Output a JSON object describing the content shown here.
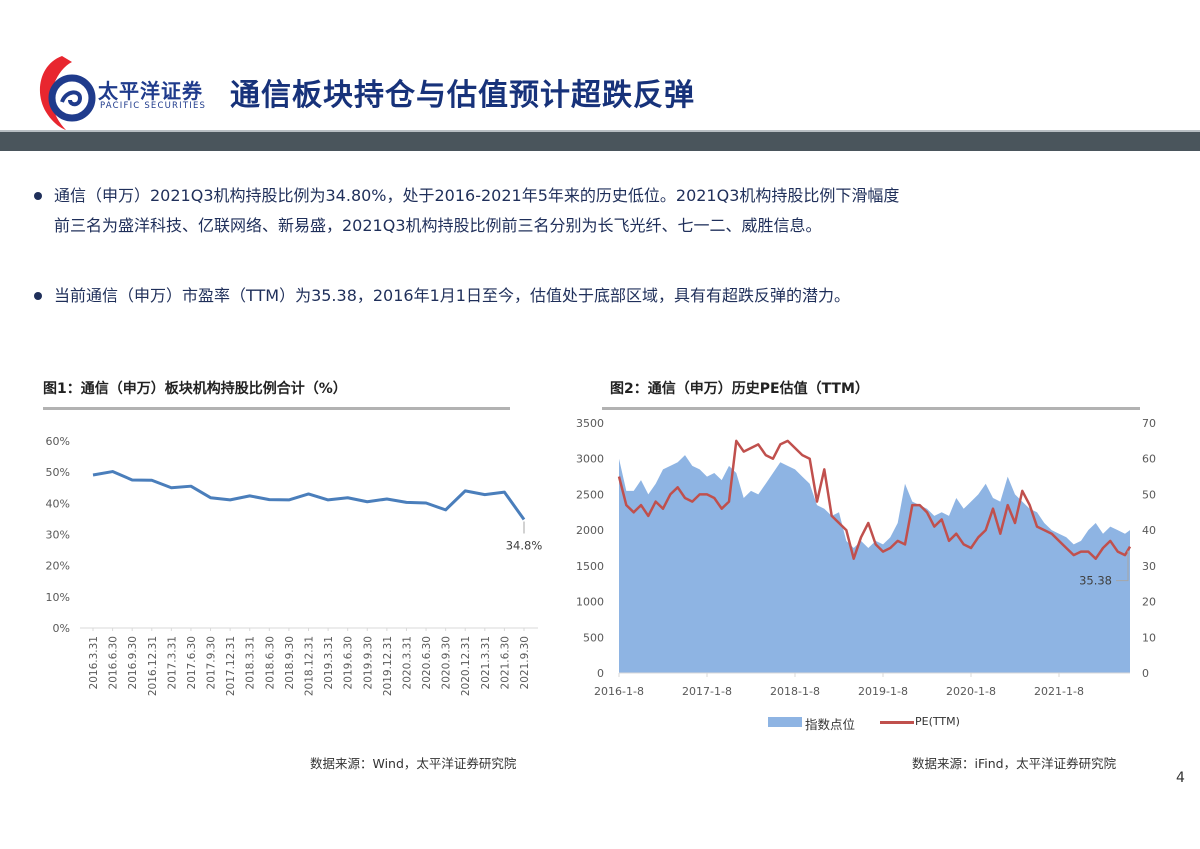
{
  "header": {
    "logo_cn": "太平洋证券",
    "logo_en": "PACIFIC SECURITIES",
    "title": "通信板块持仓与估值预计超跌反弹",
    "bar_color": "#4a555c",
    "logo_colors": {
      "red": "#e8262f",
      "blue": "#1f3b8c"
    }
  },
  "bullets": [
    {
      "lines": [
        "通信（申万）2021Q3机构持股比例为34.80%，处于2016-2021年5年来的历史低位。2021Q3机构持股比例下滑幅度",
        "前三名为盛洋科技、亿联网络、新易盛，2021Q3机构持股比例前三名分别为长飞光纤、七一二、威胜信息。"
      ]
    },
    {
      "lines": [
        "当前通信（申万）市盈率（TTM）为35.38，2016年1月1日至今，估值处于底部区域，具有有超跌反弹的潜力。"
      ]
    }
  ],
  "figure1": {
    "title": "图1：通信（申万）板块机构持股比例合计（%）",
    "source": "数据来源：Wind，太平洋证券研究院"
  },
  "figure2": {
    "title": "图2：通信（申万）历史PE估值（TTM）",
    "source": "数据来源：iFind，太平洋证券研究院",
    "legend": {
      "index": "指数点位",
      "pe": "PE(TTM)"
    }
  },
  "page_number": "4",
  "chart_data": [
    {
      "type": "line",
      "title": "图1：通信（申万）板块机构持股比例合计（%）",
      "xlabel": "",
      "ylabel": "",
      "ylim": [
        0,
        60
      ],
      "yticks": [
        "0%",
        "10%",
        "20%",
        "30%",
        "40%",
        "50%",
        "60%"
      ],
      "grid": false,
      "color": "#4a7ebb",
      "categories": [
        "2016.3.31",
        "2016.6.30",
        "2016.9.30",
        "2016.12.31",
        "2017.3.31",
        "2017.6.30",
        "2017.9.30",
        "2017.12.31",
        "2018.3.31",
        "2018.6.30",
        "2018.9.30",
        "2018.12.31",
        "2019.3.31",
        "2019.6.30",
        "2019.9.30",
        "2019.12.31",
        "2020.3.31",
        "2020.6.30",
        "2020.9.30",
        "2020.12.31",
        "2021.3.31",
        "2021.6.30",
        "2021.9.30"
      ],
      "values": [
        49.1,
        50.2,
        47.5,
        47.4,
        45.0,
        45.5,
        41.8,
        41.1,
        42.4,
        41.2,
        41.1,
        43.0,
        41.1,
        41.8,
        40.5,
        41.4,
        40.3,
        40.1,
        37.9,
        44.0,
        42.8,
        43.6,
        34.8
      ],
      "annotations": [
        {
          "category": "2021.9.30",
          "text": "34.8%"
        }
      ]
    },
    {
      "type": "area+line",
      "title": "图2：通信（申万）历史PE估值（TTM）",
      "x_ticks": [
        "2016-1-8",
        "2017-1-8",
        "2018-1-8",
        "2019-1-8",
        "2020-1-8",
        "2021-1-8"
      ],
      "y_left": {
        "range": [
          0,
          3500
        ],
        "ticks": [
          0,
          500,
          1000,
          1500,
          2000,
          2500,
          3000,
          3500
        ]
      },
      "y_right": {
        "range": [
          0,
          70
        ],
        "ticks": [
          0,
          10,
          20,
          30,
          40,
          50,
          60,
          70
        ]
      },
      "legend_position": "bottom",
      "grid": false,
      "x_monthly_start": "2016-01",
      "series": [
        {
          "name": "指数点位",
          "type": "area",
          "axis": "left",
          "color": "#8eb4e3",
          "values": [
            3000,
            2550,
            2550,
            2700,
            2500,
            2650,
            2850,
            2900,
            2950,
            3050,
            2900,
            2850,
            2750,
            2800,
            2700,
            2900,
            2800,
            2450,
            2550,
            2500,
            2650,
            2800,
            2950,
            2900,
            2850,
            2750,
            2650,
            2350,
            2300,
            2200,
            2250,
            1850,
            1750,
            1850,
            1750,
            1850,
            1800,
            1900,
            2100,
            2650,
            2400,
            2350,
            2300,
            2200,
            2250,
            2200,
            2450,
            2300,
            2400,
            2500,
            2650,
            2450,
            2400,
            2750,
            2500,
            2400,
            2300,
            2250,
            2100,
            2000,
            1950,
            1900,
            1800,
            1850,
            2000,
            2100,
            1950,
            2050,
            2000,
            1950,
            2000
          ]
        },
        {
          "name": "PE(TTM)",
          "type": "line",
          "axis": "right",
          "color": "#c0504d",
          "values": [
            55,
            47,
            45,
            47,
            44,
            48,
            46,
            50,
            52,
            49,
            48,
            50,
            50,
            49,
            46,
            48,
            65,
            62,
            63,
            64,
            61,
            60,
            64,
            65,
            63,
            61,
            60,
            48,
            57,
            44,
            42,
            40,
            32,
            38,
            42,
            36,
            34,
            35,
            37,
            36,
            47,
            47,
            45,
            41,
            43,
            37,
            39,
            36,
            35,
            38,
            40,
            46,
            39,
            47,
            42,
            51,
            47,
            41,
            40,
            39,
            37,
            35,
            33,
            34,
            34,
            32,
            35,
            37,
            34,
            33,
            35.38
          ]
        }
      ],
      "annotations": [
        {
          "series": "PE(TTM)",
          "text": "35.38",
          "position": "last"
        }
      ]
    }
  ]
}
